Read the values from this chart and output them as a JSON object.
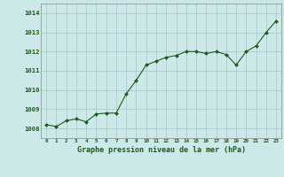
{
  "x": [
    0,
    1,
    2,
    3,
    4,
    5,
    6,
    7,
    8,
    9,
    10,
    11,
    12,
    13,
    14,
    15,
    16,
    17,
    18,
    19,
    20,
    21,
    22,
    23
  ],
  "y": [
    1008.2,
    1008.1,
    1008.4,
    1008.5,
    1008.35,
    1008.75,
    1008.8,
    1008.8,
    1009.8,
    1010.5,
    1011.3,
    1011.5,
    1011.7,
    1011.8,
    1012.0,
    1012.0,
    1011.9,
    1012.0,
    1011.85,
    1011.3,
    1012.0,
    1012.3,
    1013.0,
    1013.6
  ],
  "line_color": "#1a5c1a",
  "marker_color": "#1a5c1a",
  "bg_color": "#cce8e8",
  "grid_color": "#aacccc",
  "xlabel": "Graphe pression niveau de la mer (hPa)",
  "xlabel_color": "#1a5c1a",
  "tick_color": "#1a5c1a",
  "ylim": [
    1007.5,
    1014.5
  ],
  "yticks": [
    1008,
    1009,
    1010,
    1011,
    1012,
    1013,
    1014
  ],
  "xlim": [
    -0.5,
    23.5
  ]
}
